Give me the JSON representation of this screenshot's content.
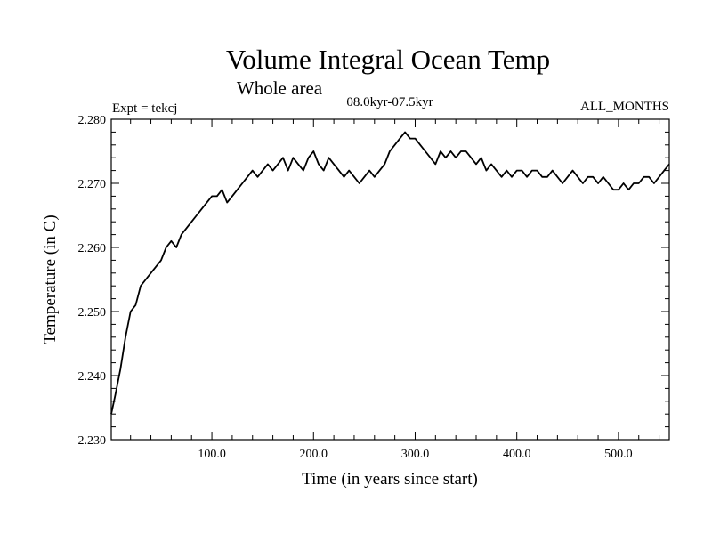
{
  "chart_data": {
    "type": "line",
    "title": "Volume Integral Ocean Temp",
    "subtitle": "Whole area",
    "period_label": "08.0kyr-07.5kyr",
    "experiment_label": "Expt = tekcj",
    "months_label": "ALL_MONTHS",
    "xlabel": "Time (in years since start)",
    "ylabel": "Temperature (in C)",
    "xlim": [
      1,
      550
    ],
    "ylim": [
      2.23,
      2.28
    ],
    "x_ticks": [
      100,
      200,
      300,
      400,
      500
    ],
    "x_tick_labels": [
      "100.0",
      "200.0",
      "300.0",
      "400.0",
      "500.0"
    ],
    "y_ticks": [
      2.23,
      2.24,
      2.25,
      2.26,
      2.27,
      2.28
    ],
    "y_tick_labels": [
      "2.230",
      "2.240",
      "2.250",
      "2.260",
      "2.270",
      "2.280"
    ],
    "series": [
      {
        "name": "Volume integral ocean temperature",
        "x": [
          1,
          5,
          10,
          15,
          20,
          25,
          30,
          35,
          40,
          45,
          50,
          55,
          60,
          65,
          70,
          75,
          80,
          85,
          90,
          95,
          100,
          105,
          110,
          115,
          120,
          125,
          130,
          135,
          140,
          145,
          150,
          155,
          160,
          165,
          170,
          175,
          180,
          185,
          190,
          195,
          200,
          205,
          210,
          215,
          220,
          225,
          230,
          235,
          240,
          245,
          250,
          255,
          260,
          265,
          270,
          275,
          280,
          285,
          290,
          295,
          300,
          305,
          310,
          315,
          320,
          325,
          330,
          335,
          340,
          345,
          350,
          355,
          360,
          365,
          370,
          375,
          380,
          385,
          390,
          395,
          400,
          405,
          410,
          415,
          420,
          425,
          430,
          435,
          440,
          445,
          450,
          455,
          460,
          465,
          470,
          475,
          480,
          485,
          490,
          495,
          500,
          505,
          510,
          515,
          520,
          525,
          530,
          535,
          540,
          545,
          550
        ],
        "values": [
          2.234,
          2.237,
          2.241,
          2.246,
          2.25,
          2.251,
          2.254,
          2.255,
          2.256,
          2.257,
          2.258,
          2.26,
          2.261,
          2.26,
          2.262,
          2.263,
          2.264,
          2.265,
          2.266,
          2.267,
          2.268,
          2.268,
          2.269,
          2.267,
          2.268,
          2.269,
          2.27,
          2.271,
          2.272,
          2.271,
          2.272,
          2.273,
          2.272,
          2.273,
          2.274,
          2.272,
          2.274,
          2.273,
          2.272,
          2.274,
          2.275,
          2.273,
          2.272,
          2.274,
          2.273,
          2.272,
          2.271,
          2.272,
          2.271,
          2.27,
          2.271,
          2.272,
          2.271,
          2.272,
          2.273,
          2.275,
          2.276,
          2.277,
          2.278,
          2.277,
          2.277,
          2.276,
          2.275,
          2.274,
          2.273,
          2.275,
          2.274,
          2.275,
          2.274,
          2.275,
          2.275,
          2.274,
          2.273,
          2.274,
          2.272,
          2.273,
          2.272,
          2.271,
          2.272,
          2.271,
          2.272,
          2.272,
          2.271,
          2.272,
          2.272,
          2.271,
          2.271,
          2.272,
          2.271,
          2.27,
          2.271,
          2.272,
          2.271,
          2.27,
          2.271,
          2.271,
          2.27,
          2.271,
          2.27,
          2.269,
          2.269,
          2.27,
          2.269,
          2.27,
          2.27,
          2.271,
          2.271,
          2.27,
          2.271,
          2.272,
          2.273
        ]
      }
    ]
  },
  "colors": {
    "line": "#000000",
    "axes": "#000000",
    "background": "#ffffff"
  }
}
